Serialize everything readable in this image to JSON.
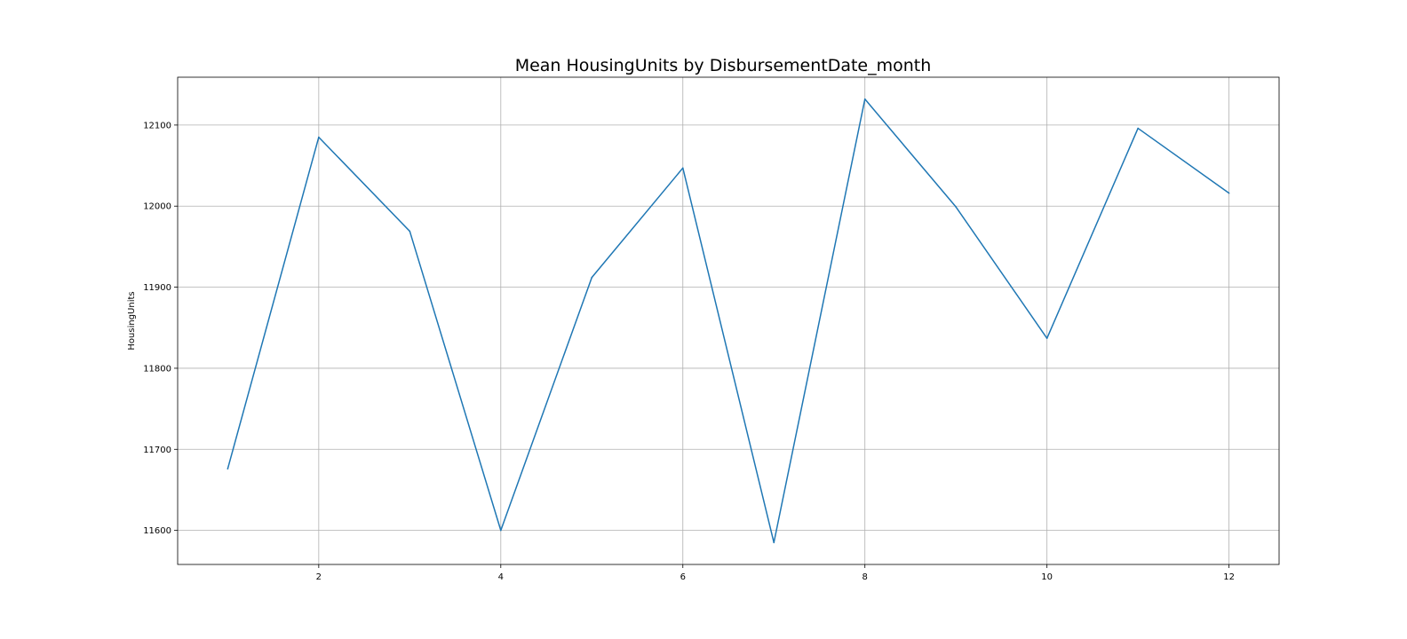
{
  "chart_data": {
    "type": "line",
    "title": "Mean HousingUnits by DisbursementDate_month",
    "xlabel": "",
    "ylabel": "HousingUnits",
    "x": [
      1,
      2,
      3,
      4,
      5,
      6,
      7,
      8,
      9,
      10,
      11,
      12
    ],
    "series": [
      {
        "values": [
          11676,
          12085,
          11969,
          11600,
          11912,
          12047,
          11585,
          12132,
          11999,
          11837,
          12096,
          12016
        ]
      }
    ],
    "xlim": [
      0.45,
      12.55
    ],
    "ylim": [
      11558,
      12159
    ],
    "xticks": [
      2,
      4,
      6,
      8,
      10,
      12
    ],
    "yticks": [
      11600,
      11700,
      11800,
      11900,
      12000,
      12100
    ],
    "grid": true,
    "line_color": "#1f77b4"
  }
}
